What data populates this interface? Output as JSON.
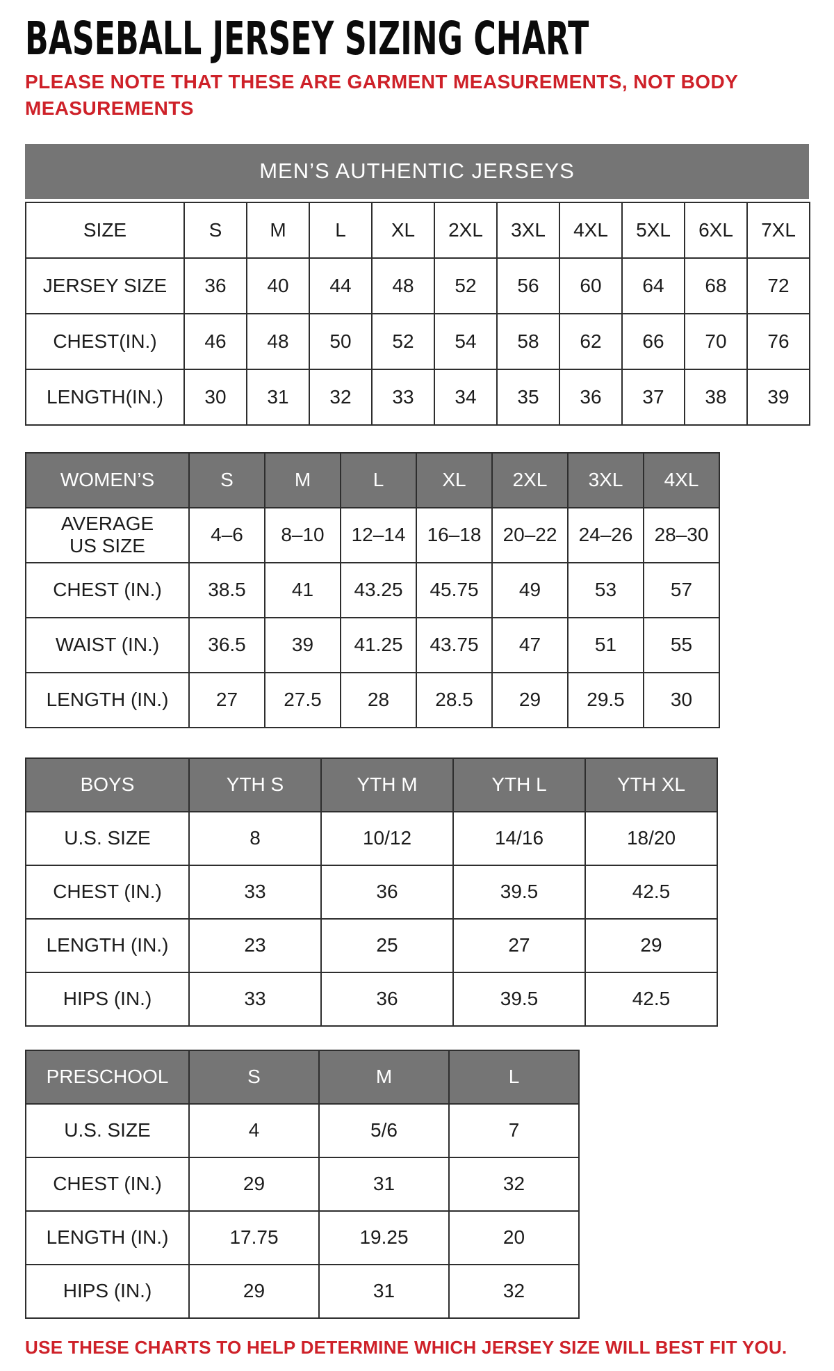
{
  "page": {
    "title": "BASEBALL JERSEY SIZING CHART",
    "note": "PLEASE NOTE THAT THESE ARE GARMENT MEASUREMENTS, NOT BODY MEASUREMENTS",
    "footer": "USE THESE CHARTS TO HELP DETERMINE WHICH JERSEY SIZE WILL BEST FIT YOU."
  },
  "colors": {
    "accent_red": "#CE2129",
    "header_gray": "#757575",
    "header_text": "#FFFFFF",
    "body_text": "#1C1C1C",
    "border": "#2E2E2E"
  },
  "tables": {
    "mens": {
      "banner": "MEN’S AUTHENTIC JERSEYS",
      "rows": [
        {
          "label": "SIZE",
          "cells": [
            "S",
            "M",
            "L",
            "XL",
            "2XL",
            "3XL",
            "4XL",
            "5XL",
            "6XL",
            "7XL"
          ]
        },
        {
          "label": "JERSEY SIZE",
          "cells": [
            "36",
            "40",
            "44",
            "48",
            "52",
            "56",
            "60",
            "64",
            "68",
            "72"
          ]
        },
        {
          "label": "CHEST(IN.)",
          "cells": [
            "46",
            "48",
            "50",
            "52",
            "54",
            "58",
            "62",
            "66",
            "70",
            "76"
          ]
        },
        {
          "label": "LENGTH(IN.)",
          "cells": [
            "30",
            "31",
            "32",
            "33",
            "34",
            "35",
            "36",
            "37",
            "38",
            "39"
          ]
        }
      ]
    },
    "womens": {
      "rows": [
        {
          "label": "WOMEN’S",
          "gray": true,
          "cells": [
            "S",
            "M",
            "L",
            "XL",
            "2XL",
            "3XL",
            "4XL"
          ]
        },
        {
          "label": "AVERAGE\nUS SIZE",
          "cells": [
            "4–6",
            "8–10",
            "12–14",
            "16–18",
            "20–22",
            "24–26",
            "28–30"
          ]
        },
        {
          "label": "CHEST (IN.)",
          "cells": [
            "38.5",
            "41",
            "43.25",
            "45.75",
            "49",
            "53",
            "57"
          ]
        },
        {
          "label": "WAIST (IN.)",
          "cells": [
            "36.5",
            "39",
            "41.25",
            "43.75",
            "47",
            "51",
            "55"
          ]
        },
        {
          "label": "LENGTH (IN.)",
          "cells": [
            "27",
            "27.5",
            "28",
            "28.5",
            "29",
            "29.5",
            "30"
          ]
        }
      ]
    },
    "boys": {
      "rows": [
        {
          "label": "BOYS",
          "gray": true,
          "cells": [
            "YTH S",
            "YTH M",
            "YTH L",
            "YTH XL"
          ]
        },
        {
          "label": "U.S. SIZE",
          "cells": [
            "8",
            "10/12",
            "14/16",
            "18/20"
          ]
        },
        {
          "label": "CHEST (IN.)",
          "cells": [
            "33",
            "36",
            "39.5",
            "42.5"
          ]
        },
        {
          "label": "LENGTH (IN.)",
          "cells": [
            "23",
            "25",
            "27",
            "29"
          ]
        },
        {
          "label": "HIPS (IN.)",
          "cells": [
            "33",
            "36",
            "39.5",
            "42.5"
          ]
        }
      ]
    },
    "preschool": {
      "rows": [
        {
          "label": "PRESCHOOL",
          "gray": true,
          "cells": [
            "S",
            "M",
            "L"
          ]
        },
        {
          "label": "U.S. SIZE",
          "cells": [
            "4",
            "5/6",
            "7"
          ]
        },
        {
          "label": "CHEST (IN.)",
          "cells": [
            "29",
            "31",
            "32"
          ]
        },
        {
          "label": "LENGTH (IN.)",
          "cells": [
            "17.75",
            "19.25",
            "20"
          ]
        },
        {
          "label": "HIPS (IN.)",
          "cells": [
            "29",
            "31",
            "32"
          ]
        }
      ]
    }
  }
}
